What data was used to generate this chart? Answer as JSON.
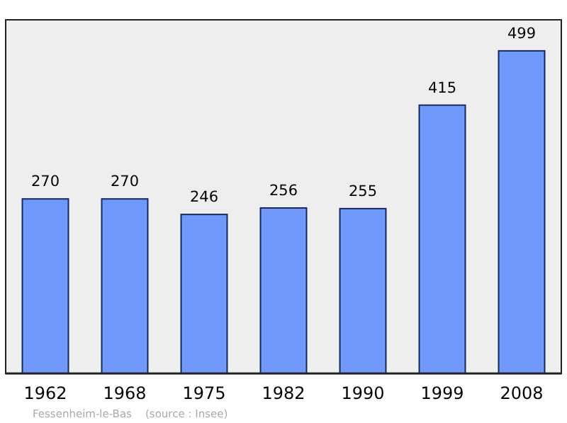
{
  "chart_data": {
    "type": "bar",
    "categories": [
      "1962",
      "1968",
      "1975",
      "1982",
      "1990",
      "1999",
      "2008"
    ],
    "values": [
      270,
      270,
      246,
      256,
      255,
      415,
      499
    ],
    "color": "#7099fb",
    "ylim": [
      0,
      547
    ],
    "data_labels": true,
    "tick_labels": "x",
    "annotations": [
      "Fessenheim-le-Bas    (source : Insee)"
    ]
  }
}
